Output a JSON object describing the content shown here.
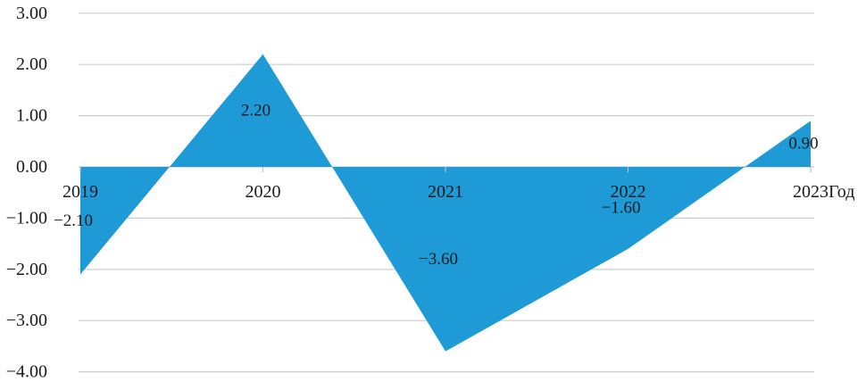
{
  "chart_data": {
    "type": "area",
    "title": "",
    "xlabel": "Год",
    "ylabel": "",
    "x": [
      2019,
      2020,
      2021,
      2022,
      2023
    ],
    "categories": [
      "2019",
      "2020",
      "2021",
      "2022",
      "2023"
    ],
    "values": [
      -2.1,
      2.2,
      -3.6,
      -1.6,
      0.9
    ],
    "point_labels": [
      "−2.10",
      "2.20",
      "−3.60",
      "−1.60",
      "0.90"
    ],
    "ylim": [
      -4.0,
      3.0
    ],
    "ytick_values": [
      3,
      2,
      1,
      0,
      -1,
      -2,
      -3,
      -4
    ],
    "ytick_labels": [
      "3.00",
      "2.00",
      "1.00",
      "0.00",
      "−1.00",
      "−2.00",
      "−3.00",
      "−4.00"
    ],
    "grid": true,
    "legend": false,
    "label_position": "center-of-fill",
    "colors": {
      "area_fill": "#1e9bd7",
      "gridline": "#cccccc",
      "tick": "#bfbfbf",
      "text": "#1a1a1a"
    }
  }
}
